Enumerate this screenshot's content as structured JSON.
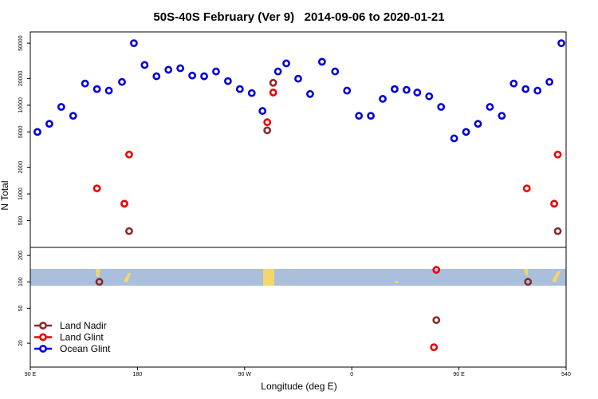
{
  "chart_data": [
    {
      "type": "scatter",
      "title": "50S-40S February (Ver 9)   2014-09-06 to 2020-01-21",
      "y_label": "N Total",
      "log_y": true,
      "xlim": [
        90,
        540
      ],
      "ylim": [
        250,
        67000
      ],
      "yticks": [
        500,
        1000,
        2000,
        5000,
        10000,
        20000,
        50000
      ],
      "series": [
        {
          "color": "#8b2a2a",
          "x": [
            173,
            289,
            294,
            533
          ],
          "values": [
            381,
            5210,
            17900,
            381
          ]
        },
        {
          "color": "#ee0000",
          "x": [
            146,
            169,
            173,
            289,
            294,
            507,
            530,
            533
          ],
          "values": [
            1155,
            777,
            2780,
            6430,
            13900,
            1155,
            777,
            2780
          ]
        },
        {
          "color": "#0000dd",
          "x": [
            96,
            106,
            116,
            126,
            136,
            146,
            156,
            167,
            177,
            186,
            196,
            206,
            216,
            226,
            236,
            246,
            256,
            266,
            276,
            285,
            298,
            305,
            315,
            325,
            335,
            346,
            356,
            366,
            376,
            386,
            396,
            406,
            415,
            425,
            435,
            446,
            456,
            466,
            476,
            486,
            496,
            506,
            516,
            526,
            536
          ],
          "values": [
            5000,
            6170,
            9570,
            7600,
            17550,
            15200,
            14600,
            18300,
            50000,
            28400,
            21200,
            25100,
            26100,
            21600,
            21200,
            24000,
            18700,
            15200,
            13700,
            8610,
            24000,
            29600,
            19900,
            13400,
            30900,
            24000,
            14600,
            7600,
            7600,
            11800,
            15200,
            14900,
            13900,
            12600,
            9570,
            4230,
            5000,
            6170,
            9570,
            7600,
            17550,
            15200,
            14600,
            18300,
            50000
          ]
        }
      ]
    },
    {
      "type": "scatter",
      "x_label": "Longitude (deg E)",
      "log_y": true,
      "xlim": [
        90,
        540
      ],
      "ylim": [
        10.7,
        247
      ],
      "yticks": [
        20,
        50,
        100,
        200
      ],
      "xticks": [
        {
          "value": 90,
          "label": "90 E"
        },
        180,
        {
          "value": 270,
          "label": "90 W"
        },
        {
          "value": 360,
          "label": "0"
        },
        {
          "value": 450,
          "label": "90 E"
        },
        540
      ],
      "legend": "bottom-left",
      "series": [
        {
          "name": "Land Nadir",
          "color": "#8b2a2a",
          "x": [
            148,
            431,
            508
          ],
          "values": [
            100,
            36.7,
            100
          ]
        },
        {
          "name": "Land Glint",
          "color": "#ee0000",
          "x": [
            431,
            429
          ],
          "values": [
            137,
            18
          ]
        },
        {
          "name": "Ocean Glint",
          "color": "#0000dd",
          "x": [],
          "values": []
        }
      ]
    }
  ]
}
